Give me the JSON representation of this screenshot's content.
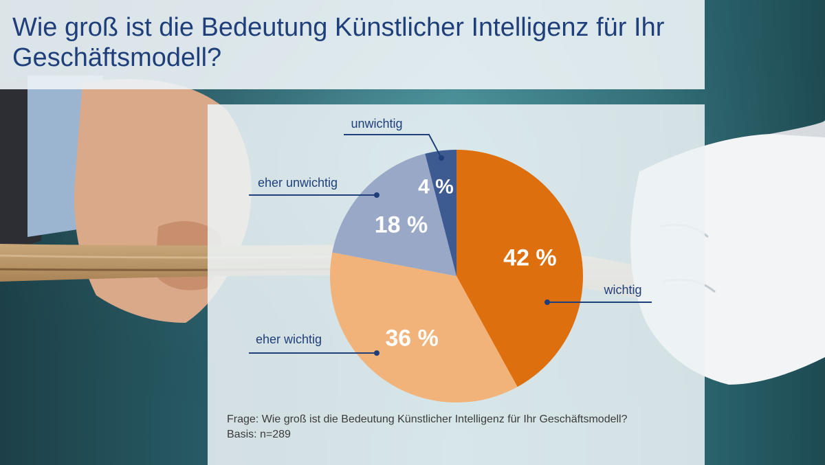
{
  "title": "Wie groß ist die Bedeutung Künstlicher Intelligenz für Ihr Geschäftsmodell?",
  "footnote": {
    "question": "Frage: Wie groß ist die Bedeutung Künstlicher Intelligenz für Ihr Geschäftsmodell?",
    "basis": "Basis: n=289"
  },
  "colors": {
    "wichtig": "#dd6f0e",
    "eher_wichtig": "#f2b37a",
    "eher_unwichtig": "#9aa8c8",
    "unwichtig": "#3d5a91",
    "label_text": "#1f3f7a",
    "leader_line": "#1f3f7a"
  },
  "chart_data": {
    "type": "pie",
    "title": "",
    "slices": [
      {
        "label": "wichtig",
        "value": 42,
        "display": "42 %",
        "color": "#dd6f0e"
      },
      {
        "label": "eher wichtig",
        "value": 36,
        "display": "36 %",
        "color": "#f2b37a"
      },
      {
        "label": "eher unwichtig",
        "value": 18,
        "display": "18 %",
        "color": "#9aa8c8"
      },
      {
        "label": "unwichtig",
        "value": 4,
        "display": "4 %",
        "color": "#3d5a91"
      }
    ],
    "unit": "%"
  }
}
